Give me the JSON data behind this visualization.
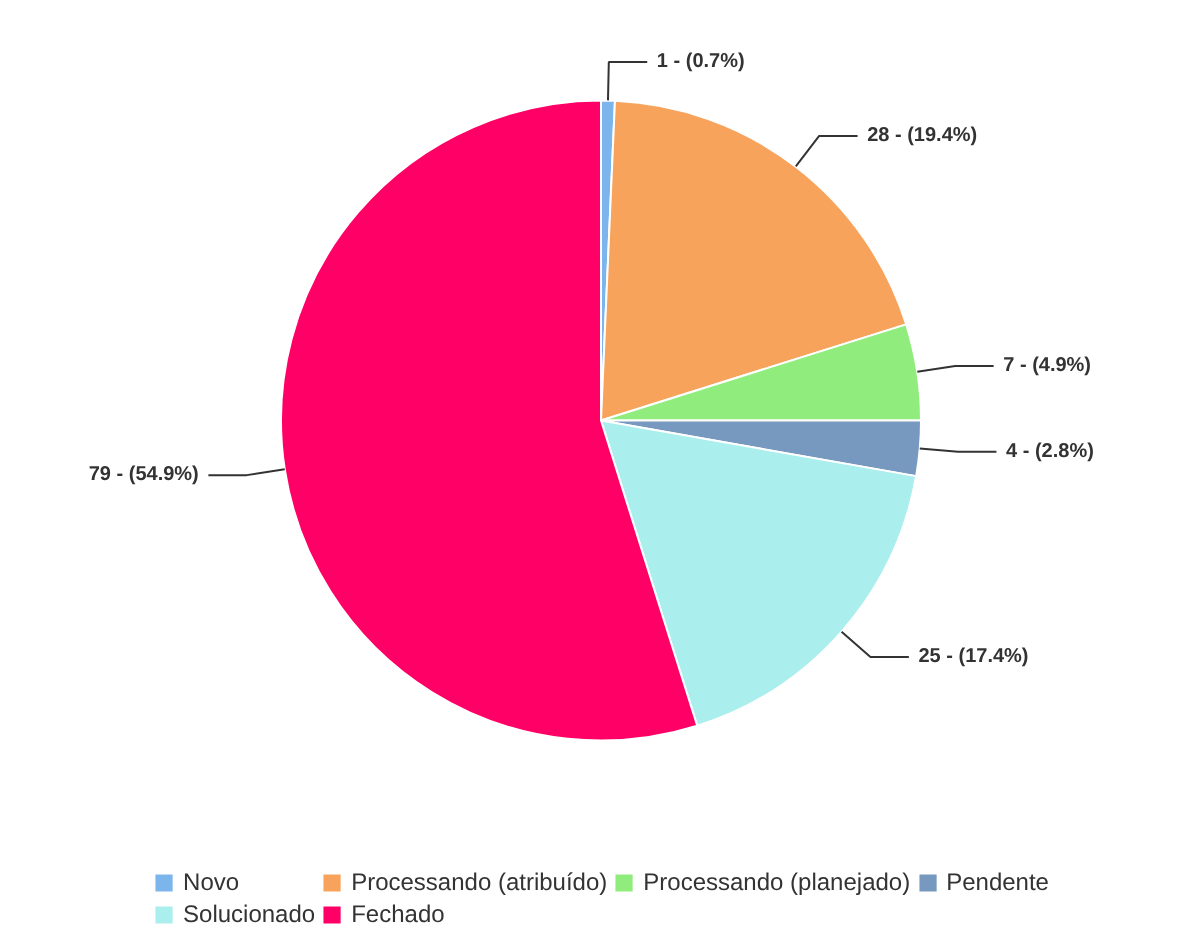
{
  "chart_data": {
    "type": "pie",
    "categories": [
      "Novo",
      "Processando (atribuído)",
      "Processando (planejado)",
      "Pendente",
      "Solucionado",
      "Fechado"
    ],
    "values": [
      1,
      28,
      7,
      4,
      25,
      79
    ],
    "colors": [
      "#7cb5ec",
      "#f7a35c",
      "#90ed7d",
      "#7798bf",
      "#aaeeee",
      "#ff0066"
    ],
    "value_labels": [
      "1 - (0.7%)",
      "28 - (19.4%)",
      "7 - (4.9%)",
      "4 - (2.8%)",
      "25 - (17.4%)",
      "79 - (54.9%)"
    ],
    "legend": "bottom"
  }
}
